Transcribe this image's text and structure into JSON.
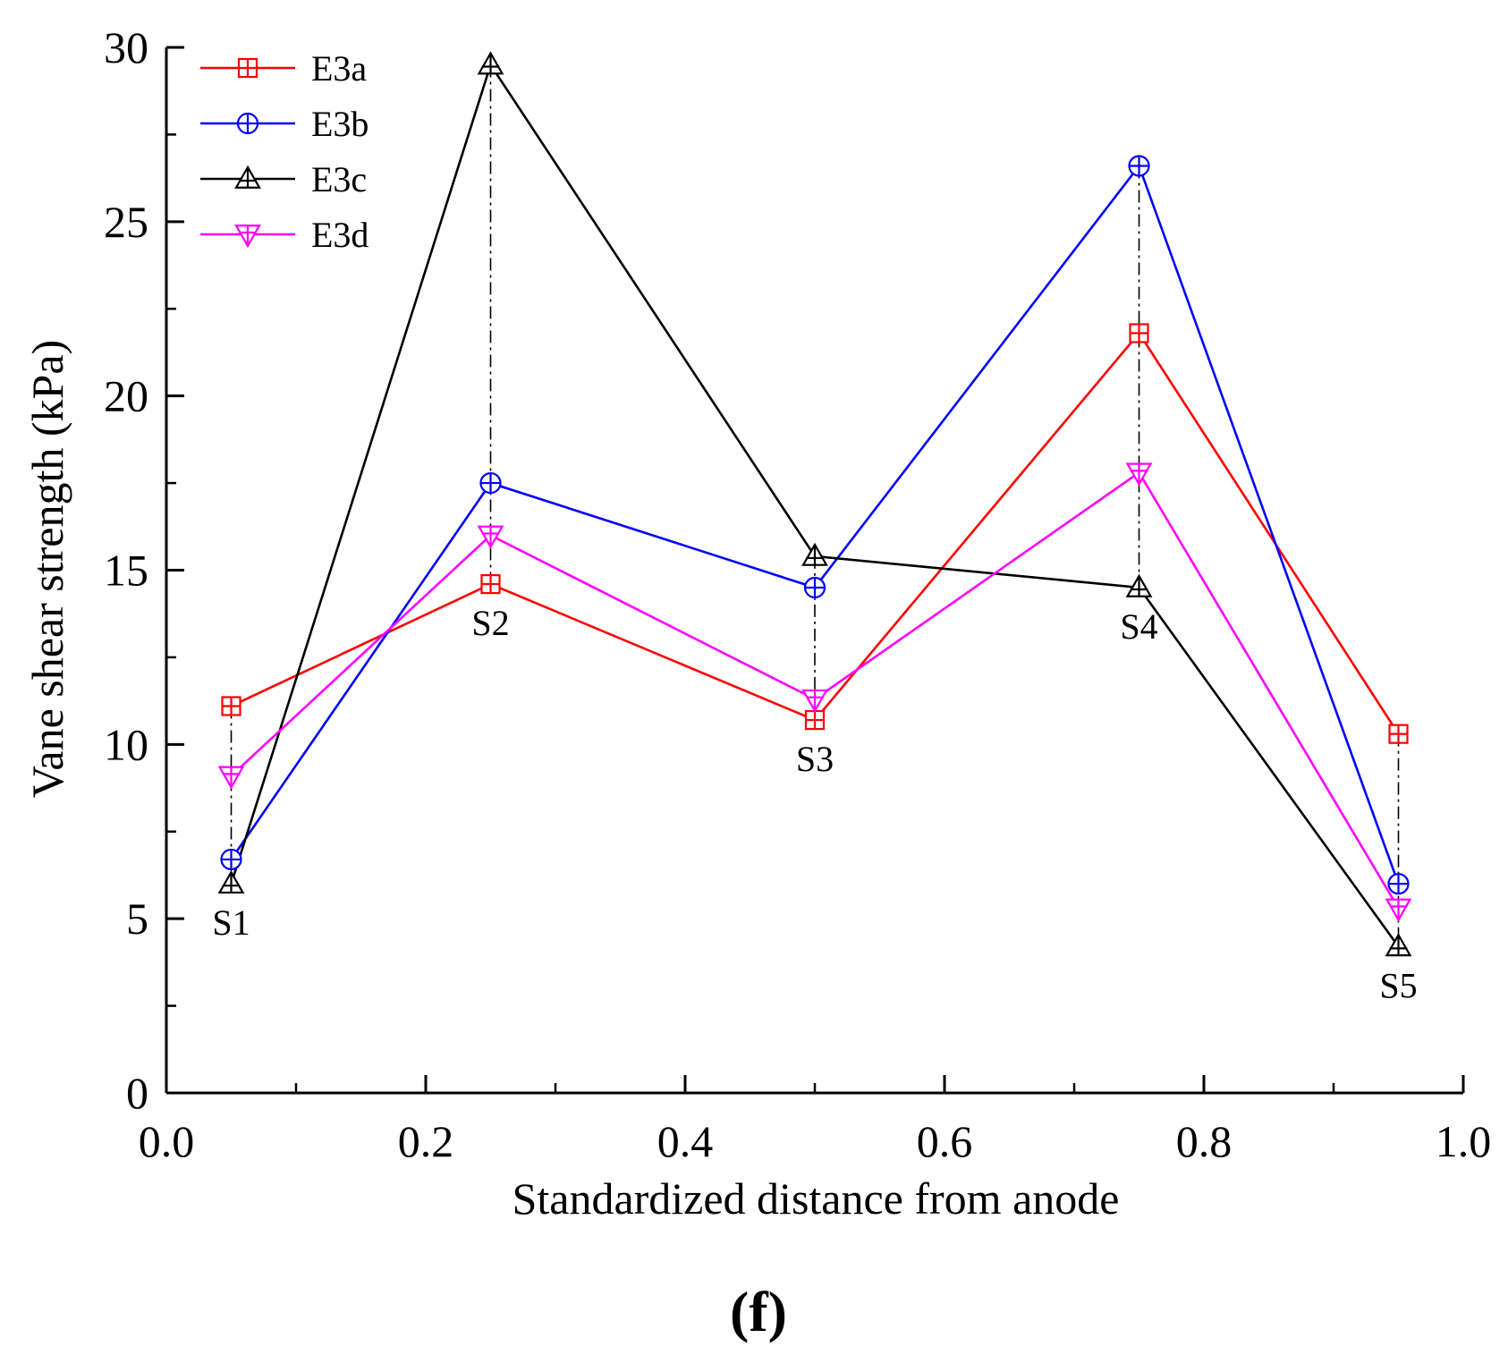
{
  "chart_data": {
    "type": "line",
    "title": "",
    "xlabel": "Standardized distance from anode",
    "ylabel": "Vane shear strength (kPa)",
    "xlim": [
      0.0,
      1.0
    ],
    "ylim": [
      0,
      30
    ],
    "x_ticks": [
      0.0,
      0.2,
      0.4,
      0.6,
      0.8,
      1.0
    ],
    "x_tick_labels": [
      "0.0",
      "0.2",
      "0.4",
      "0.6",
      "0.8",
      "1.0"
    ],
    "x_minor_ticks": [
      0.1,
      0.3,
      0.5,
      0.7,
      0.9
    ],
    "y_ticks": [
      0,
      5,
      10,
      15,
      20,
      25,
      30
    ],
    "y_tick_labels": [
      "0",
      "5",
      "10",
      "15",
      "20",
      "25",
      "30"
    ],
    "y_minor_ticks": [
      2.5,
      7.5,
      12.5,
      17.5,
      22.5,
      27.5
    ],
    "grid": false,
    "legend_position": "top-left",
    "x": [
      0.05,
      0.25,
      0.5,
      0.75,
      0.95
    ],
    "series": [
      {
        "name": "E3a",
        "color": "#ff0000",
        "marker": "square-plus",
        "values": [
          11.1,
          14.6,
          10.7,
          21.8,
          10.3
        ]
      },
      {
        "name": "E3b",
        "color": "#0000ff",
        "marker": "circle-plus",
        "values": [
          6.7,
          17.5,
          14.5,
          26.6,
          6.0
        ]
      },
      {
        "name": "E3c",
        "color": "#000000",
        "marker": "triangle-up-plus",
        "values": [
          6.0,
          29.5,
          15.4,
          14.5,
          4.2
        ]
      },
      {
        "name": "E3d",
        "color": "#ff00ff",
        "marker": "triangle-down-plus",
        "values": [
          9.1,
          16.0,
          11.3,
          17.8,
          5.3
        ]
      }
    ],
    "stations": [
      {
        "label": "S1",
        "x": 0.05,
        "label_position": "below"
      },
      {
        "label": "S2",
        "x": 0.25,
        "label_position": "below"
      },
      {
        "label": "S3",
        "x": 0.5,
        "label_position": "below"
      },
      {
        "label": "S4",
        "x": 0.75,
        "label_position": "below"
      },
      {
        "label": "S5",
        "x": 0.95,
        "label_position": "below"
      }
    ],
    "panel_label": "(f)"
  }
}
